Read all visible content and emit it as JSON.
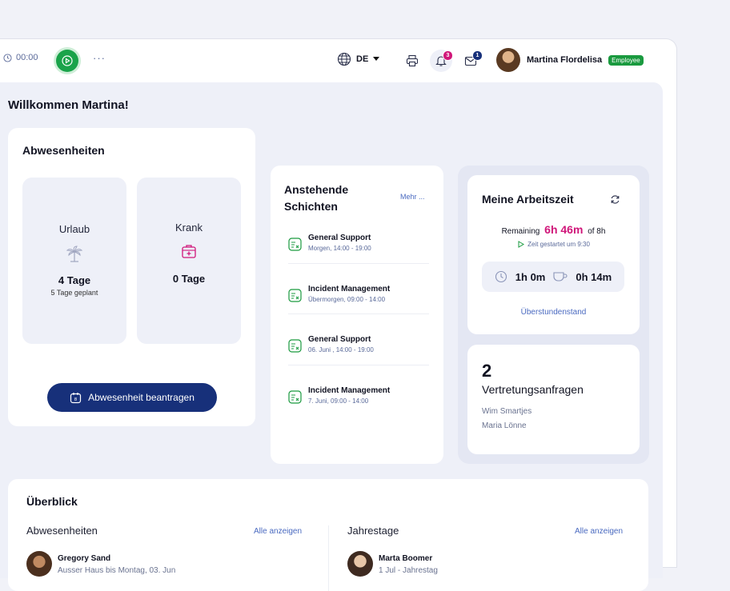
{
  "topbar": {
    "timer": "00:00",
    "more": "···",
    "language": "DE",
    "notifications_count": "3",
    "messages_count": "1",
    "user_name": "Martina Flordelisa",
    "user_role": "Employee"
  },
  "welcome": "Willkommen Martina!",
  "absences": {
    "title": "Abwesenheiten",
    "vacation": {
      "label": "Urlaub",
      "value": "4 Tage",
      "sub": "5 Tage geplant"
    },
    "sick": {
      "label": "Krank",
      "value": "0 Tage"
    },
    "request_button": "Abwesenheit beantragen"
  },
  "shifts": {
    "title_line1": "Anstehende",
    "title_line2": "Schichten",
    "more": "Mehr ...",
    "items": [
      {
        "title": "General Support",
        "time": "Morgen, 14:00 - 19:00"
      },
      {
        "title": "Incident Management",
        "time": "Übermorgen, 09:00 - 14:00"
      },
      {
        "title": "General Support",
        "time": "06. Juni , 14:00 - 19:00"
      },
      {
        "title": "Incident Management",
        "time": "7. Juni, 09:00 - 14:00"
      }
    ]
  },
  "worktime": {
    "title": "Meine Arbeitszeit",
    "remaining_label": "Remaining",
    "remaining_value": "6h 46m",
    "of_total": "of 8h",
    "started": "Zeit gestartet um 9:30",
    "worked": "1h 0m",
    "break": "0h 14m",
    "overtime_link": "Überstundenstand"
  },
  "substitutions": {
    "count": "2",
    "label": "Vertretungsanfragen",
    "people": [
      "Wim Smartjes",
      "Maria Lönne"
    ]
  },
  "overview": {
    "title": "Überblick",
    "absences_title": "Abwesenheiten",
    "absences_link": "Alle anzeigen",
    "absence_name": "Gregory Sand",
    "absence_sub": "Ausser Haus bis Montag, 03. Jun",
    "anniv_title": "Jahrestage",
    "anniv_link": "Alle anzeigen",
    "anniv_name": "Marta Boomer",
    "anniv_sub": "1 Jul - Jahrestag"
  },
  "colors": {
    "accent_green": "#1aa34a",
    "primary_navy": "#17307a",
    "highlight_pink": "#d0177a",
    "link_blue": "#4a6ac0"
  }
}
